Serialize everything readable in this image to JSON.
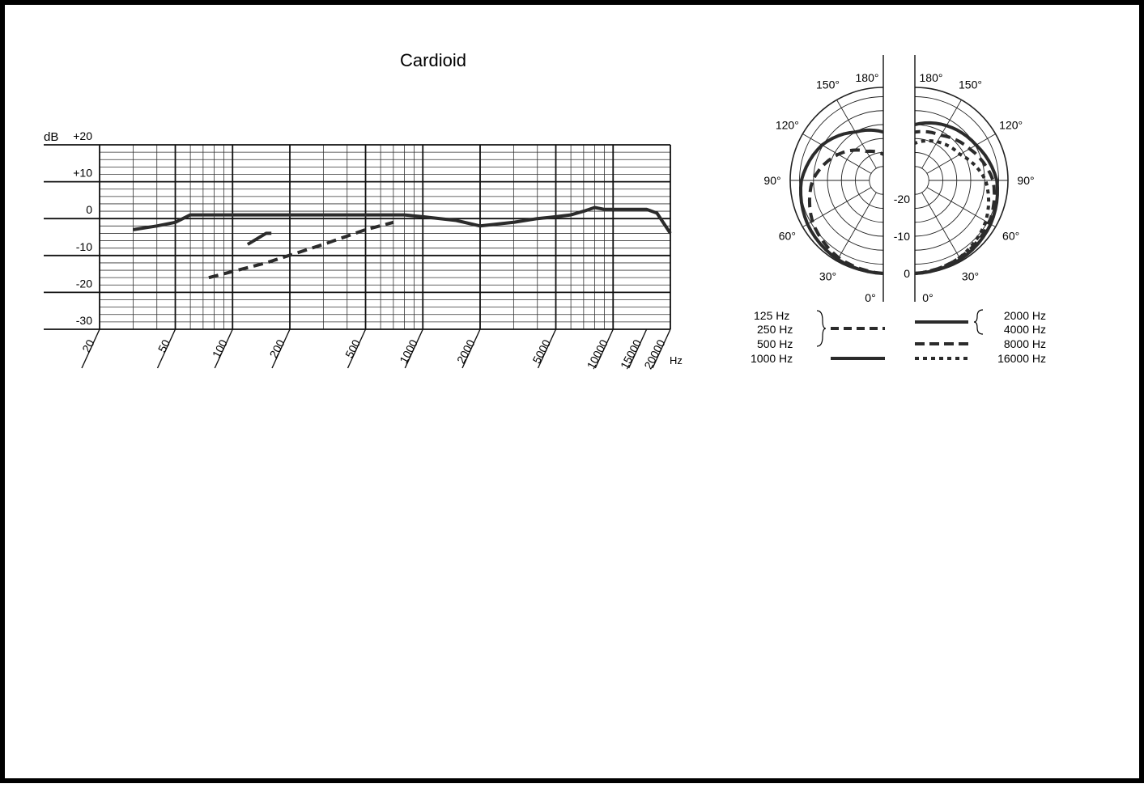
{
  "chart_data": [
    {
      "type": "line",
      "title": "Cardioid",
      "ylabel": "dB",
      "xlabel": "Hz",
      "x_scale": "log",
      "xlim": [
        20,
        20000
      ],
      "ylim": [
        -30,
        20
      ],
      "grid": true,
      "y_ticks": [
        "+20",
        "+10",
        "0",
        "-10",
        "-20",
        "-30"
      ],
      "y_tick_values": [
        20,
        10,
        0,
        -10,
        -20,
        -30
      ],
      "x_ticks": [
        "20",
        "50",
        "100",
        "200",
        "500",
        "1000",
        "2000",
        "5000",
        "10000",
        "15000",
        "20000"
      ],
      "x_tick_values": [
        20,
        50,
        100,
        200,
        500,
        1000,
        2000,
        5000,
        10000,
        15000,
        20000
      ],
      "series": [
        {
          "style": "solid",
          "x": [
            30,
            40,
            50,
            60,
            100,
            200,
            500,
            800,
            1000,
            1500,
            2000,
            3000,
            4000,
            5000,
            6000,
            7000,
            8000,
            9000,
            10000,
            12000,
            15000,
            17000,
            20000
          ],
          "y": [
            -3,
            -2,
            -1,
            1,
            1,
            1,
            1,
            1,
            0.5,
            -0.5,
            -2,
            -1,
            0,
            0.5,
            1,
            2,
            3,
            2.5,
            2.5,
            2.5,
            2.5,
            1.5,
            -4
          ]
        },
        {
          "style": "dashed",
          "x": [
            75,
            150,
            300,
            500,
            700
          ],
          "y": [
            -16,
            -12,
            -7,
            -3,
            -1
          ]
        },
        {
          "style": "solid",
          "x": [
            120,
            150,
            160
          ],
          "y": [
            -7,
            -4,
            -4
          ]
        }
      ]
    },
    {
      "type": "polar",
      "r_ticks": [
        "-20",
        "-10",
        "0"
      ],
      "r_tick_values": [
        -20,
        -10,
        0
      ],
      "angle_labels_left": [
        "180°",
        "150°",
        "120°",
        "90°",
        "60°",
        "30°",
        "0°"
      ],
      "angle_labels_right": [
        "180°",
        "150°",
        "120°",
        "90°",
        "60°",
        "30°",
        "0°"
      ],
      "angles": [
        0,
        30,
        60,
        90,
        120,
        150,
        180
      ],
      "left_series": [
        {
          "style": "solid",
          "r": [
            0,
            -0.5,
            -1.5,
            -3,
            -6,
            -10,
            -12
          ]
        },
        {
          "style": "dashed",
          "r": [
            0,
            -1,
            -3,
            -6,
            -11,
            -16,
            -18
          ]
        }
      ],
      "right_series": [
        {
          "style": "solid",
          "r": [
            0,
            -0.5,
            -1.5,
            -3,
            -6,
            -8,
            -10
          ]
        },
        {
          "style": "dashed",
          "r": [
            0,
            -1,
            -2,
            -4,
            -8,
            -11,
            -12
          ]
        },
        {
          "style": "dotted",
          "r": [
            0,
            -1,
            -3,
            -6,
            -11,
            -13,
            -15
          ]
        }
      ],
      "legend_left": {
        "group_labels": [
          "125 Hz",
          "250 Hz",
          "500 Hz"
        ],
        "single_label": "1000 Hz"
      },
      "legend_right": {
        "group_labels": [
          "2000 Hz",
          "4000 Hz"
        ],
        "labels": [
          "8000 Hz",
          "16000 Hz"
        ]
      }
    }
  ]
}
